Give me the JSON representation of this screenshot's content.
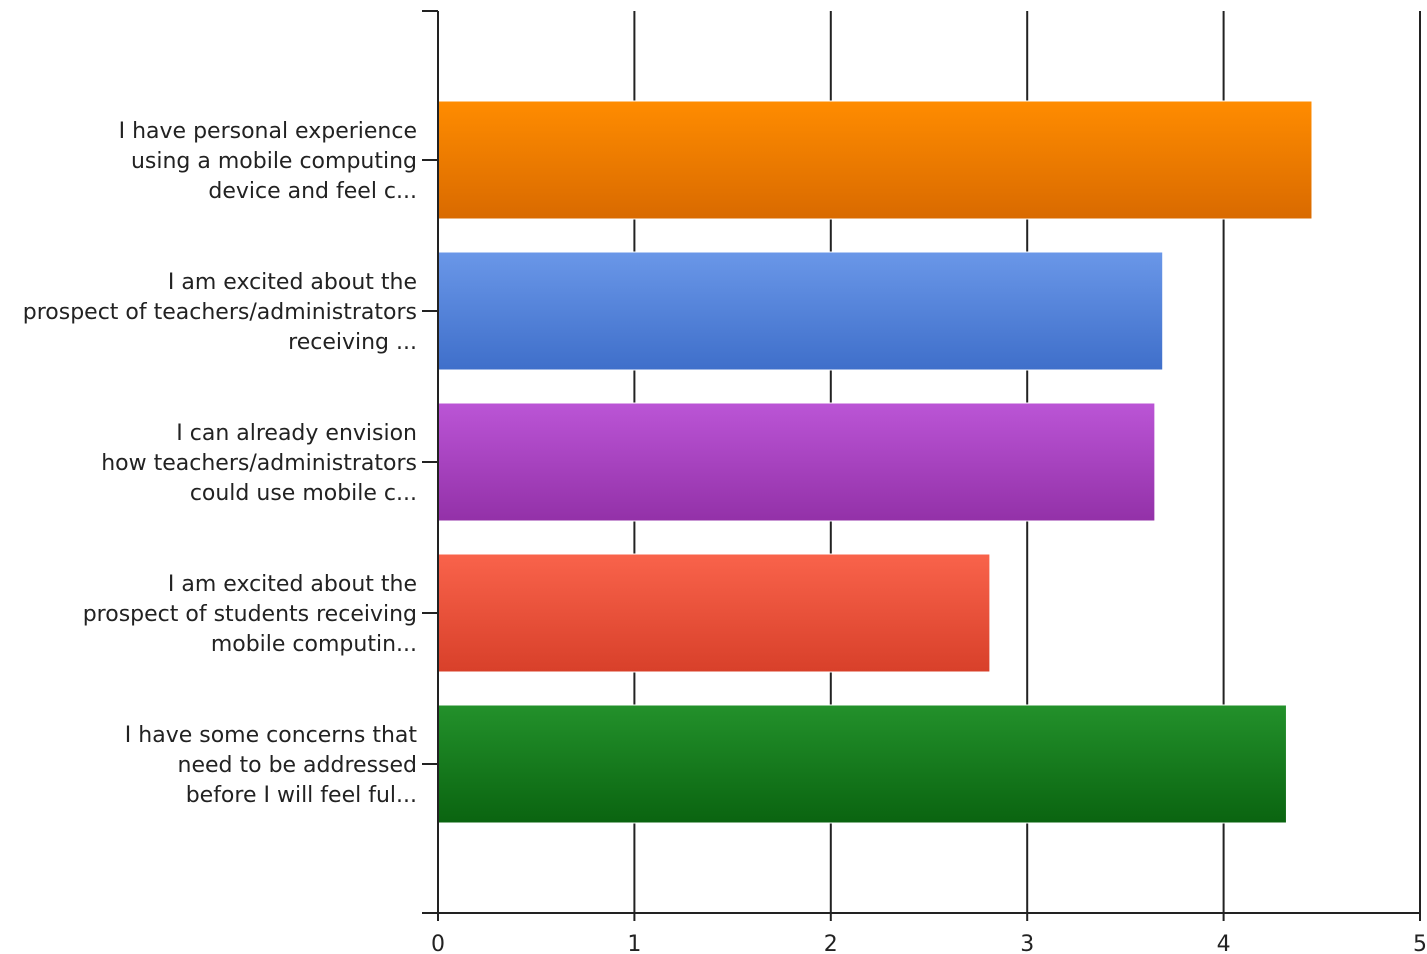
{
  "chart_data": {
    "type": "bar",
    "orientation": "horizontal",
    "xlim": [
      0,
      5
    ],
    "x_ticks": [
      "0",
      "1",
      "2",
      "3",
      "4",
      "5"
    ],
    "grid": true,
    "categories": [
      [
        "I have personal experience",
        "using a mobile computing",
        "device and feel c..."
      ],
      [
        "I am excited about the",
        "prospect of teachers/administrators",
        "receiving ..."
      ],
      [
        "I can already envision",
        "how teachers/administrators",
        "could use mobile c..."
      ],
      [
        "I am excited about the",
        "prospect of students receiving",
        "mobile computin..."
      ],
      [
        "I have some concerns that",
        "need to be addressed",
        "before I will feel ful..."
      ]
    ],
    "values": [
      4.45,
      3.69,
      3.65,
      2.81,
      4.32
    ],
    "colors": [
      [
        "#ff8c00",
        "#d96a00"
      ],
      [
        "#6a97e8",
        "#3f6fca"
      ],
      [
        "#bb55d6",
        "#9331a8"
      ],
      [
        "#f9634b",
        "#d8402a"
      ],
      [
        "#23912b",
        "#0a6410"
      ]
    ]
  }
}
